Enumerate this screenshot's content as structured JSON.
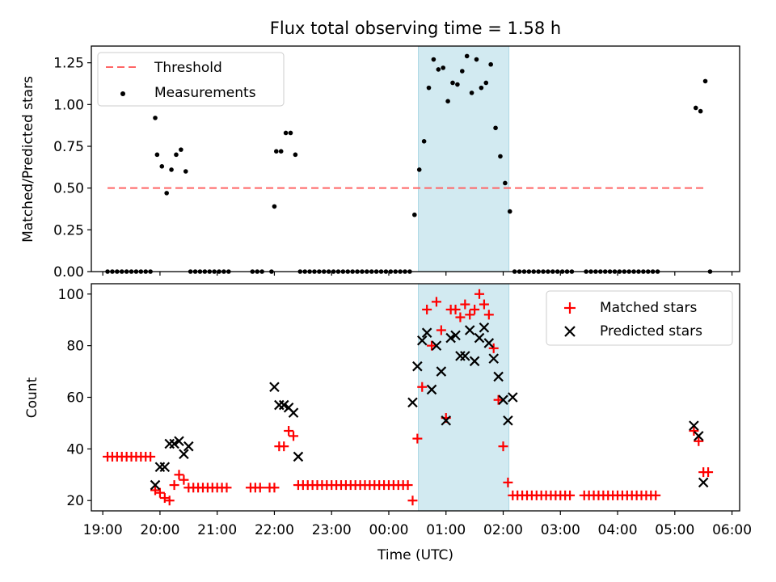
{
  "figure_title": "Flux total observing time = 1.58 h",
  "chart_data": [
    {
      "type": "scatter",
      "panel": "top",
      "ylabel": "Matched/Predicted stars",
      "xlabel": "",
      "xlim": [
        "19:00",
        "06:00"
      ],
      "ylim": [
        0,
        1.35
      ],
      "yticks": [
        "0.00",
        "0.25",
        "0.50",
        "0.75",
        "1.00",
        "1.25"
      ],
      "shaded_interval": {
        "start": "00:31",
        "end": "02:06",
        "color": "#add8e6"
      },
      "legend": {
        "placement": "upper-left",
        "entries": [
          "Threshold",
          "Measurements"
        ]
      },
      "series": [
        {
          "name": "Threshold",
          "style": "dashed-line",
          "color": "#ff6666",
          "x": [
            "19:05",
            "05:34"
          ],
          "y": [
            0.5,
            0.5
          ]
        },
        {
          "name": "Measurements",
          "style": "dot",
          "color": "#000000",
          "x": [
            "19:05",
            "19:10",
            "19:15",
            "19:20",
            "19:25",
            "19:30",
            "19:35",
            "19:40",
            "19:45",
            "19:50",
            "19:55",
            "19:57",
            "20:02",
            "20:07",
            "20:12",
            "20:17",
            "20:22",
            "20:27",
            "20:32",
            "20:37",
            "20:42",
            "20:47",
            "20:52",
            "20:57",
            "21:02",
            "21:07",
            "21:12",
            "21:37",
            "21:42",
            "21:47",
            "21:57",
            "22:00",
            "22:02",
            "22:07",
            "22:12",
            "22:17",
            "22:22",
            "22:27",
            "22:32",
            "22:37",
            "22:42",
            "22:47",
            "22:52",
            "22:57",
            "23:02",
            "23:07",
            "23:12",
            "23:17",
            "23:22",
            "23:27",
            "23:32",
            "23:37",
            "23:42",
            "23:47",
            "23:52",
            "23:57",
            "00:02",
            "00:07",
            "00:12",
            "00:17",
            "00:22",
            "00:27",
            "00:32",
            "00:37",
            "00:42",
            "00:47",
            "00:52",
            "00:57",
            "01:02",
            "01:07",
            "01:12",
            "01:17",
            "01:22",
            "01:27",
            "01:32",
            "01:37",
            "01:42",
            "01:47",
            "01:52",
            "01:57",
            "02:02",
            "02:07",
            "02:12",
            "02:17",
            "02:22",
            "02:27",
            "02:32",
            "02:37",
            "02:42",
            "02:47",
            "02:52",
            "02:57",
            "03:02",
            "03:07",
            "03:12",
            "03:27",
            "03:32",
            "03:37",
            "03:42",
            "03:47",
            "03:52",
            "03:57",
            "04:02",
            "04:07",
            "04:12",
            "04:17",
            "04:22",
            "04:27",
            "04:32",
            "04:37",
            "04:42",
            "05:22",
            "05:27",
            "05:32",
            "05:37"
          ],
          "y": [
            0,
            0,
            0,
            0,
            0,
            0,
            0,
            0,
            0,
            0,
            0.92,
            0.7,
            0.63,
            0.47,
            0.61,
            0.7,
            0.73,
            0.6,
            0,
            0,
            0,
            0,
            0,
            0,
            0,
            0,
            0,
            0,
            0,
            0,
            0,
            0.39,
            0.72,
            0.72,
            0.83,
            0.83,
            0.7,
            0,
            0,
            0,
            0,
            0,
            0,
            0,
            0,
            0,
            0,
            0,
            0,
            0,
            0,
            0,
            0,
            0,
            0,
            0,
            0,
            0,
            0,
            0,
            0,
            0.34,
            0.61,
            0.78,
            1.1,
            1.27,
            1.21,
            1.22,
            1.02,
            1.13,
            1.12,
            1.2,
            1.29,
            1.07,
            1.27,
            1.1,
            1.13,
            1.24,
            0.86,
            0.69,
            0.53,
            0.36,
            0,
            0,
            0,
            0,
            0,
            0,
            0,
            0,
            0,
            0,
            0,
            0,
            0,
            0,
            0,
            0,
            0,
            0,
            0,
            0,
            0,
            0,
            0,
            0,
            0,
            0,
            0,
            0,
            0,
            0.98,
            0.96,
            1.14,
            0
          ]
        }
      ]
    },
    {
      "type": "scatter",
      "panel": "bottom",
      "xlabel": "Time (UTC)",
      "ylabel": "Count",
      "xlim": [
        "19:00",
        "06:00"
      ],
      "ylim": [
        16,
        104
      ],
      "xticks": [
        "19:00",
        "20:00",
        "21:00",
        "22:00",
        "23:00",
        "00:00",
        "01:00",
        "02:00",
        "03:00",
        "04:00",
        "05:00",
        "06:00"
      ],
      "yticks": [
        "20",
        "40",
        "60",
        "80",
        "100"
      ],
      "shaded_interval": {
        "start": "00:31",
        "end": "02:06",
        "color": "#add8e6"
      },
      "legend": {
        "placement": "upper-right",
        "entries": [
          "Matched stars",
          "Predicted stars"
        ]
      },
      "series": [
        {
          "name": "Matched stars",
          "style": "plus",
          "color": "#ff0000",
          "points": [
            [
              "19:05",
              37
            ],
            [
              "19:10",
              37
            ],
            [
              "19:15",
              37
            ],
            [
              "19:20",
              37
            ],
            [
              "19:25",
              37
            ],
            [
              "19:30",
              37
            ],
            [
              "19:35",
              37
            ],
            [
              "19:40",
              37
            ],
            [
              "19:45",
              37
            ],
            [
              "19:50",
              37
            ],
            [
              "19:55",
              24
            ],
            [
              "20:00",
              23
            ],
            [
              "20:05",
              21
            ],
            [
              "20:10",
              20
            ],
            [
              "20:15",
              26
            ],
            [
              "20:20",
              30
            ],
            [
              "20:25",
              28
            ],
            [
              "20:30",
              25
            ],
            [
              "20:35",
              25
            ],
            [
              "20:40",
              25
            ],
            [
              "20:45",
              25
            ],
            [
              "20:50",
              25
            ],
            [
              "20:55",
              25
            ],
            [
              "21:00",
              25
            ],
            [
              "21:05",
              25
            ],
            [
              "21:10",
              25
            ],
            [
              "21:35",
              25
            ],
            [
              "21:40",
              25
            ],
            [
              "21:45",
              25
            ],
            [
              "21:55",
              25
            ],
            [
              "22:00",
              25
            ],
            [
              "22:05",
              41
            ],
            [
              "22:10",
              41
            ],
            [
              "22:15",
              47
            ],
            [
              "22:20",
              45
            ],
            [
              "22:25",
              26
            ],
            [
              "22:30",
              26
            ],
            [
              "22:35",
              26
            ],
            [
              "22:40",
              26
            ],
            [
              "22:45",
              26
            ],
            [
              "22:50",
              26
            ],
            [
              "22:55",
              26
            ],
            [
              "23:00",
              26
            ],
            [
              "23:05",
              26
            ],
            [
              "23:10",
              26
            ],
            [
              "23:15",
              26
            ],
            [
              "23:20",
              26
            ],
            [
              "23:25",
              26
            ],
            [
              "23:30",
              26
            ],
            [
              "23:35",
              26
            ],
            [
              "23:40",
              26
            ],
            [
              "23:45",
              26
            ],
            [
              "23:50",
              26
            ],
            [
              "23:55",
              26
            ],
            [
              "00:00",
              26
            ],
            [
              "00:05",
              26
            ],
            [
              "00:10",
              26
            ],
            [
              "00:15",
              26
            ],
            [
              "00:20",
              26
            ],
            [
              "00:25",
              20
            ],
            [
              "00:30",
              44
            ],
            [
              "00:35",
              64
            ],
            [
              "00:40",
              94
            ],
            [
              "00:45",
              80
            ],
            [
              "00:50",
              97
            ],
            [
              "00:55",
              86
            ],
            [
              "01:00",
              52
            ],
            [
              "01:05",
              94
            ],
            [
              "01:10",
              94
            ],
            [
              "01:15",
              91
            ],
            [
              "01:20",
              96
            ],
            [
              "01:25",
              92
            ],
            [
              "01:30",
              94
            ],
            [
              "01:35",
              100
            ],
            [
              "01:40",
              96
            ],
            [
              "01:45",
              92
            ],
            [
              "01:50",
              79
            ],
            [
              "01:55",
              59
            ],
            [
              "02:00",
              41
            ],
            [
              "02:05",
              27
            ],
            [
              "02:10",
              22
            ],
            [
              "02:15",
              22
            ],
            [
              "02:20",
              22
            ],
            [
              "02:25",
              22
            ],
            [
              "02:30",
              22
            ],
            [
              "02:35",
              22
            ],
            [
              "02:40",
              22
            ],
            [
              "02:45",
              22
            ],
            [
              "02:50",
              22
            ],
            [
              "02:55",
              22
            ],
            [
              "03:00",
              22
            ],
            [
              "03:05",
              22
            ],
            [
              "03:10",
              22
            ],
            [
              "03:25",
              22
            ],
            [
              "03:30",
              22
            ],
            [
              "03:35",
              22
            ],
            [
              "03:40",
              22
            ],
            [
              "03:45",
              22
            ],
            [
              "03:50",
              22
            ],
            [
              "03:55",
              22
            ],
            [
              "04:00",
              22
            ],
            [
              "04:05",
              22
            ],
            [
              "04:10",
              22
            ],
            [
              "04:15",
              22
            ],
            [
              "04:20",
              22
            ],
            [
              "04:25",
              22
            ],
            [
              "04:30",
              22
            ],
            [
              "04:35",
              22
            ],
            [
              "04:40",
              22
            ],
            [
              "05:20",
              47
            ],
            [
              "05:25",
              43
            ],
            [
              "05:30",
              31
            ],
            [
              "05:35",
              31
            ]
          ]
        },
        {
          "name": "Predicted stars",
          "style": "x",
          "color": "#000000",
          "points": [
            [
              "19:55",
              26
            ],
            [
              "20:00",
              33
            ],
            [
              "20:05",
              33
            ],
            [
              "20:10",
              42
            ],
            [
              "20:15",
              42
            ],
            [
              "20:20",
              43
            ],
            [
              "20:25",
              38
            ],
            [
              "20:30",
              41
            ],
            [
              "22:00",
              64
            ],
            [
              "22:05",
              57
            ],
            [
              "22:10",
              57
            ],
            [
              "22:15",
              56
            ],
            [
              "22:20",
              54
            ],
            [
              "22:25",
              37
            ],
            [
              "00:25",
              58
            ],
            [
              "00:30",
              72
            ],
            [
              "00:35",
              82
            ],
            [
              "00:40",
              85
            ],
            [
              "00:45",
              63
            ],
            [
              "00:50",
              80
            ],
            [
              "00:55",
              70
            ],
            [
              "01:00",
              51
            ],
            [
              "01:05",
              83
            ],
            [
              "01:10",
              84
            ],
            [
              "01:15",
              76
            ],
            [
              "01:20",
              76
            ],
            [
              "01:25",
              86
            ],
            [
              "01:30",
              74
            ],
            [
              "01:35",
              83
            ],
            [
              "01:40",
              87
            ],
            [
              "01:45",
              81
            ],
            [
              "01:50",
              75
            ],
            [
              "01:55",
              68
            ],
            [
              "02:00",
              59
            ],
            [
              "02:05",
              51
            ],
            [
              "02:10",
              60
            ],
            [
              "05:20",
              49
            ],
            [
              "05:25",
              45
            ],
            [
              "05:30",
              27
            ]
          ]
        }
      ]
    }
  ]
}
